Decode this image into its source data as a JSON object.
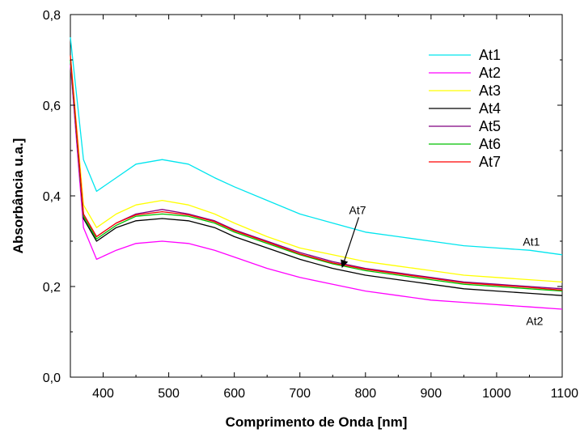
{
  "chart_data": {
    "type": "line",
    "title": "",
    "xlabel": "Comprimento de Onda [nm]",
    "ylabel": "Absorbância u.a.]",
    "xlim": [
      350,
      1100
    ],
    "ylim": [
      0.0,
      0.8
    ],
    "x_ticks": [
      400,
      500,
      600,
      700,
      800,
      900,
      1000,
      1100
    ],
    "x_tick_labels": [
      "400",
      "500",
      "600",
      "700",
      "800",
      "900",
      "1000",
      "1100"
    ],
    "y_ticks": [
      0.0,
      0.2,
      0.4,
      0.6,
      0.8
    ],
    "y_tick_labels": [
      "0,0",
      "0,2",
      "0,4",
      "0,6",
      "0,8"
    ],
    "grid": false,
    "legend_position": "top-right",
    "x": [
      350,
      370,
      390,
      420,
      450,
      490,
      530,
      570,
      600,
      650,
      700,
      750,
      800,
      850,
      900,
      950,
      1000,
      1050,
      1100
    ],
    "series": [
      {
        "name": "At1",
        "color": "#00E5EE",
        "values": [
          0.75,
          0.48,
          0.41,
          0.44,
          0.47,
          0.48,
          0.47,
          0.44,
          0.42,
          0.39,
          0.36,
          0.34,
          0.32,
          0.31,
          0.3,
          0.29,
          0.285,
          0.28,
          0.27
        ]
      },
      {
        "name": "At2",
        "color": "#FF00FF",
        "values": [
          0.69,
          0.33,
          0.26,
          0.28,
          0.295,
          0.3,
          0.295,
          0.28,
          0.265,
          0.24,
          0.22,
          0.205,
          0.19,
          0.18,
          0.17,
          0.165,
          0.16,
          0.155,
          0.15
        ]
      },
      {
        "name": "At3",
        "color": "#FFFF00",
        "values": [
          0.71,
          0.38,
          0.33,
          0.36,
          0.38,
          0.39,
          0.38,
          0.36,
          0.34,
          0.31,
          0.285,
          0.27,
          0.255,
          0.245,
          0.235,
          0.225,
          0.22,
          0.215,
          0.21
        ]
      },
      {
        "name": "At4",
        "color": "#000000",
        "values": [
          0.7,
          0.35,
          0.3,
          0.33,
          0.345,
          0.35,
          0.345,
          0.33,
          0.31,
          0.285,
          0.26,
          0.24,
          0.225,
          0.215,
          0.205,
          0.195,
          0.19,
          0.185,
          0.18
        ]
      },
      {
        "name": "At5",
        "color": "#800080",
        "values": [
          0.7,
          0.36,
          0.31,
          0.34,
          0.36,
          0.37,
          0.36,
          0.345,
          0.325,
          0.3,
          0.275,
          0.255,
          0.24,
          0.23,
          0.22,
          0.21,
          0.205,
          0.2,
          0.195
        ]
      },
      {
        "name": "At6",
        "color": "#00C000",
        "values": [
          0.7,
          0.355,
          0.305,
          0.335,
          0.355,
          0.36,
          0.355,
          0.34,
          0.32,
          0.295,
          0.27,
          0.25,
          0.235,
          0.225,
          0.215,
          0.205,
          0.2,
          0.195,
          0.19
        ]
      },
      {
        "name": "At7",
        "color": "#FF0000",
        "values": [
          0.71,
          0.36,
          0.31,
          0.34,
          0.358,
          0.365,
          0.358,
          0.343,
          0.323,
          0.298,
          0.272,
          0.252,
          0.238,
          0.228,
          0.218,
          0.208,
          0.203,
          0.198,
          0.192
        ]
      }
    ],
    "annotations": [
      {
        "text": "At1",
        "series": "At1",
        "x": 1040,
        "y": 0.29
      },
      {
        "text": "At2",
        "series": "At2",
        "x": 1045,
        "y": 0.115
      },
      {
        "text": "At7",
        "series": "At7",
        "x": 775,
        "y": 0.36,
        "arrow_to_x": 765,
        "arrow_to_y": 0.245
      }
    ]
  }
}
